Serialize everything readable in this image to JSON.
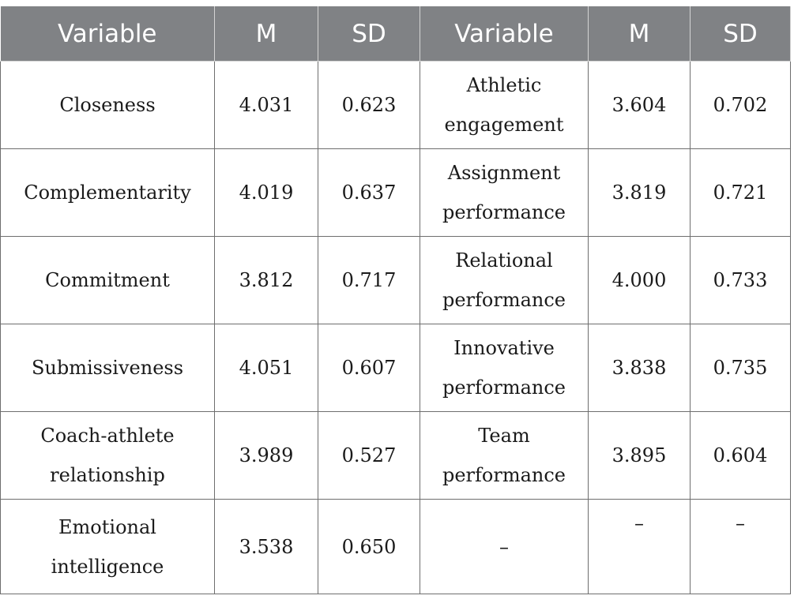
{
  "table": {
    "headers": [
      "Variable",
      "M",
      "SD",
      "Variable",
      "M",
      "SD"
    ],
    "rows": [
      [
        "Closeness",
        "4.031",
        "0.623",
        "Athletic engagement",
        "3.604",
        "0.702"
      ],
      [
        "Complementarity",
        "4.019",
        "0.637",
        "Assignment performance",
        "3.819",
        "0.721"
      ],
      [
        "Commitment",
        "3.812",
        "0.717",
        "Relational performance",
        "4.000",
        "0.733"
      ],
      [
        "Submissiveness",
        "4.051",
        "0.607",
        "Innovative performance",
        "3.838",
        "0.735"
      ],
      [
        "Coach-athlete relationship",
        "3.989",
        "0.527",
        "Team performance",
        "3.895",
        "0.604"
      ],
      [
        "Emotional intelligence",
        "3.538",
        "0.650",
        "–",
        "–",
        "–"
      ]
    ]
  }
}
